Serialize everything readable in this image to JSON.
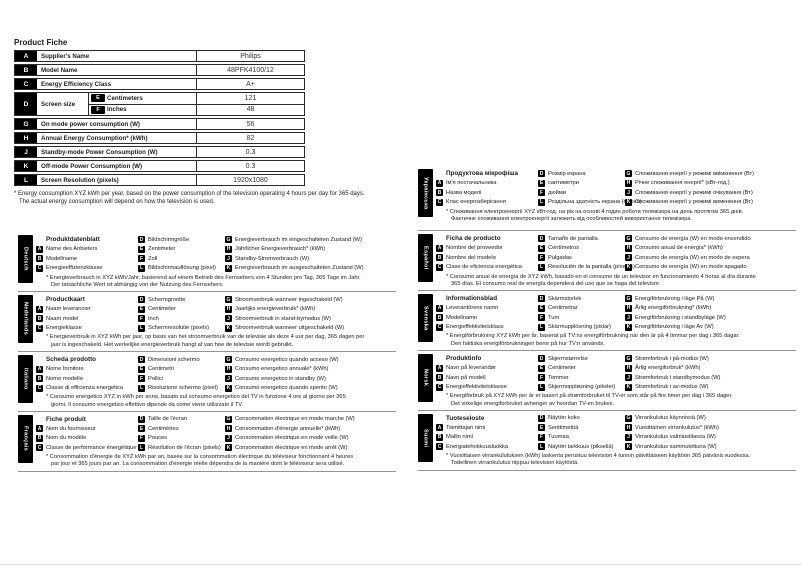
{
  "page": {
    "title": "Product Fiche",
    "footnote_line1": "* Energy consumption XYZ kWh per year, based on the power consumption of the television operating 4 hours per day for 365 days.",
    "footnote_line2": "The actual energy consumption will depend on how the television is used."
  },
  "fiche_table": {
    "rows": [
      {
        "key": "A",
        "label": "Supplier's Name",
        "value": "Philips"
      },
      {
        "key": "B",
        "label": "Model Name",
        "value": "48PFK4100/12"
      },
      {
        "key": "C",
        "label": "Energy Efficiency Class",
        "value": "A+"
      },
      {
        "key": "G",
        "label": "On mode power consumption (W)",
        "value": "56"
      },
      {
        "key": "H",
        "label": "Annual Energy Consumption* (kWh)",
        "value": "82"
      },
      {
        "key": "J",
        "label": "Standby-mode Power Consumption (W)",
        "value": "0.3"
      },
      {
        "key": "K",
        "label": "Off-mode Power Consumption (W)",
        "value": "0.3"
      },
      {
        "key": "L",
        "label": "Screen Resolution (pixels)",
        "value": "1920x1080"
      }
    ],
    "screen_size": {
      "key": "D",
      "label": "Screen size",
      "subrows": [
        {
          "key": "E",
          "label": "Centimeters",
          "value": "121"
        },
        {
          "key": "F",
          "label": "Inches",
          "value": "48"
        }
      ]
    }
  },
  "sections_left": [
    {
      "language": "Deutsch",
      "title": "Produktdatenblatt",
      "items_abc": [
        {
          "key": "A",
          "label": "Name des Anbieters"
        },
        {
          "key": "B",
          "label": "Modellname"
        },
        {
          "key": "C",
          "label": "Energieeffizienzklasse"
        }
      ],
      "items_defl": [
        {
          "key": "D",
          "label": "Bildschirmgröße"
        },
        {
          "key": "E",
          "label": "Zentimeter"
        },
        {
          "key": "F",
          "label": "Zoll"
        },
        {
          "key": "L",
          "label": "Bildschirmauflösung (pixel)"
        }
      ],
      "items_ghjk": [
        {
          "key": "G",
          "label": "Energieverbrauch im eingeschalteten Zustand (W)"
        },
        {
          "key": "H",
          "label": "Jährlicher Energieverbrauch* (kWh)"
        },
        {
          "key": "J",
          "label": "Standby-Stromverbrauch (W)"
        },
        {
          "key": "K",
          "label": "Energieverbrauch im ausgeschalteten Zustand (W)"
        }
      ],
      "footnote": [
        "* Energieverbrauch in XYZ kWh/Jahr, basierend auf einem Betrieb des Fernsehers von 4 Stunden pro Tag, 365 Tage im Jahr.",
        "Der tatsächliche Wert ist abhängig von der Nutzung des Fernsehers."
      ]
    },
    {
      "language": "Nederlands",
      "title": "Productkaart",
      "items_abc": [
        {
          "key": "A",
          "label": "Naam leverancier"
        },
        {
          "key": "B",
          "label": "Naam model"
        },
        {
          "key": "C",
          "label": "Energieklasse"
        }
      ],
      "items_defl": [
        {
          "key": "D",
          "label": "Schermgrootte"
        },
        {
          "key": "E",
          "label": "Centimeter"
        },
        {
          "key": "F",
          "label": "Inch"
        },
        {
          "key": "L",
          "label": "Schermresolutie (pixels)"
        }
      ],
      "items_ghjk": [
        {
          "key": "G",
          "label": "Stroomverbruik wanneer ingeschakeld (W)"
        },
        {
          "key": "H",
          "label": "Jaarlijks energieverbruik* (kWh)"
        },
        {
          "key": "J",
          "label": "Stroomverbruik in stand-bymodus (W)"
        },
        {
          "key": "K",
          "label": "Stroomverbruik wanneer uitgeschakeld (W)"
        }
      ],
      "footnote": [
        "* Energieverbruik in XYZ kWh per jaar, op basis van het stroomverbruik van de televisie als deze 4 uur per dag, 365 dagen per",
        "jaar is ingeschakeld. Het werkelijke energieverbruik hangt af van hoe de televisie wordt gebruikt."
      ]
    },
    {
      "language": "Italiano",
      "title": "Scheda prodotto",
      "items_abc": [
        {
          "key": "A",
          "label": "Nome fornitore"
        },
        {
          "key": "B",
          "label": "Nome modello"
        },
        {
          "key": "C",
          "label": "Classe di efficienza energetica"
        }
      ],
      "items_defl": [
        {
          "key": "D",
          "label": "Dimensioni schermo"
        },
        {
          "key": "E",
          "label": "Centimetri"
        },
        {
          "key": "F",
          "label": "Pollici"
        },
        {
          "key": "L",
          "label": "Risoluzione schermo (pixel)"
        }
      ],
      "items_ghjk": [
        {
          "key": "G",
          "label": "Consumo energetico quando acceso (W)"
        },
        {
          "key": "H",
          "label": "Consumo energetico annuale* (kWh)"
        },
        {
          "key": "J",
          "label": "Consumo energetico in standby (W)"
        },
        {
          "key": "K",
          "label": "Consumo energetico quando spento (W)"
        }
      ],
      "footnote": [
        "* Consumo energetico XYZ in kWh per anno, basato sul consumo energetico del TV in funzione 4 ore al giorno per 365",
        "giorni. Il consumo energetico effettivo dipende da come viene utilizzato il TV."
      ]
    },
    {
      "language": "Français",
      "title": "Fiche produit",
      "items_abc": [
        {
          "key": "A",
          "label": "Nom du fournisseur"
        },
        {
          "key": "B",
          "label": "Nom du modèle"
        },
        {
          "key": "C",
          "label": "Classe de performance énergétique"
        }
      ],
      "items_defl": [
        {
          "key": "D",
          "label": "Taille de l'écran"
        },
        {
          "key": "E",
          "label": "Centimètres"
        },
        {
          "key": "F",
          "label": "Pouces"
        },
        {
          "key": "L",
          "label": "Résolution de l'écran (pixels)"
        }
      ],
      "items_ghjk": [
        {
          "key": "G",
          "label": "Consommation électrique en mode marche (W)"
        },
        {
          "key": "H",
          "label": "Consommation d'énergie annuelle* (kWh)"
        },
        {
          "key": "J",
          "label": "Consommation électrique en mode veille (W)"
        },
        {
          "key": "K",
          "label": "Consommation électrique en mode arrêt (W)"
        }
      ],
      "footnote": [
        "* Consommation d'énergie de XYZ kWh par an, basée sur la consommation électrique du téléviseur fonctionnant 4 heures",
        "par jour et 365 jours par an. La consommation d'énergie réelle dépendra de la manière dont le téléviseur sera utilisé."
      ]
    }
  ],
  "sections_right": [
    {
      "language": "Українська",
      "title": "Продуктова мікрофіша",
      "items_abc": [
        {
          "key": "A",
          "label": "Ім'я постачальника"
        },
        {
          "key": "B",
          "label": "Назва моделі"
        },
        {
          "key": "C",
          "label": "Клас енергозберігання"
        }
      ],
      "items_defl": [
        {
          "key": "D",
          "label": "Розмір екрана"
        },
        {
          "key": "E",
          "label": "сантиметри"
        },
        {
          "key": "F",
          "label": "дюйми"
        },
        {
          "key": "L",
          "label": "Роздільна здатність екрана (піксел)"
        }
      ],
      "items_ghjk": [
        {
          "key": "G",
          "label": "Споживання енергії у режимі ввімкнення (Вт)"
        },
        {
          "key": "H",
          "label": "Річне споживання енергії* (кВт-год.)"
        },
        {
          "key": "J",
          "label": "Споживання енергії у режимі очікування (Вт)"
        },
        {
          "key": "K",
          "label": "Споживання енергії у режимі вимкнення (Вт)"
        }
      ],
      "footnote": [
        "* Споживання електроенергії XYZ кВт-год. на рік на основі 4 годин роботи телевізора на день протягом 365 днів.",
        "Фактичне споживання електроенергії залежить від особливостей використання телевізора."
      ]
    },
    {
      "language": "Español",
      "title": "Ficha de producto",
      "items_abc": [
        {
          "key": "A",
          "label": "Nombre del proveedor"
        },
        {
          "key": "B",
          "label": "Nombre del modelo"
        },
        {
          "key": "C",
          "label": "Clase de eficiencia energética"
        }
      ],
      "items_defl": [
        {
          "key": "D",
          "label": "Tamaño de pantalla"
        },
        {
          "key": "E",
          "label": "Centímetros"
        },
        {
          "key": "F",
          "label": "Pulgadas"
        },
        {
          "key": "L",
          "label": "Resolución de la pantalla (píxeles)"
        }
      ],
      "items_ghjk": [
        {
          "key": "G",
          "label": "Consumo de energía (W) en modo encendido"
        },
        {
          "key": "H",
          "label": "Consumo anual de energía* (kWh)"
        },
        {
          "key": "J",
          "label": "Consumo de energía (W) en modo de espera"
        },
        {
          "key": "K",
          "label": "Consumo de energía (W) en modo apagado"
        }
      ],
      "footnote": [
        "* Consumo anual de energía de XYZ kWh, basado en el consumo de un televisor en funcionamiento 4 horas al día durante",
        "365 días. El consumo real de energía dependerá del uso que se haga del televisor."
      ]
    },
    {
      "language": "Svenska",
      "title": "Informationsblad",
      "items_abc": [
        {
          "key": "A",
          "label": "Leverantörens namn"
        },
        {
          "key": "B",
          "label": "Modellnamn"
        },
        {
          "key": "C",
          "label": "Energieffektivitetsklass"
        }
      ],
      "items_defl": [
        {
          "key": "D",
          "label": "Skärmstorlek"
        },
        {
          "key": "E",
          "label": "Centimetrar"
        },
        {
          "key": "F",
          "label": "Tum"
        },
        {
          "key": "L",
          "label": "Skärmupplösning (pixlar)"
        }
      ],
      "items_ghjk": [
        {
          "key": "G",
          "label": "Energiförbrukning i läge På (W)"
        },
        {
          "key": "H",
          "label": "Årlig energiförbrukning* (kWh)"
        },
        {
          "key": "J",
          "label": "Energiförbrukning i standbyläge (W)"
        },
        {
          "key": "K",
          "label": "Energiförbrukning i läge Av (W)"
        }
      ],
      "footnote": [
        "* Energiförbrukning XYZ kWh per år, baserat på TV:ns energiförbrukning när den är på 4 timmar per dag i 365 dagar.",
        "Den faktiska energiförbrukningen beror på hur TV:n används."
      ]
    },
    {
      "language": "Norsk",
      "title": "Produktinfo",
      "items_abc": [
        {
          "key": "A",
          "label": "Navn på leverandør"
        },
        {
          "key": "B",
          "label": "Navn på modell"
        },
        {
          "key": "C",
          "label": "Energieffektivitetsklasse"
        }
      ],
      "items_defl": [
        {
          "key": "D",
          "label": "Skjermstørrelse"
        },
        {
          "key": "E",
          "label": "Centimeter"
        },
        {
          "key": "F",
          "label": "Tommer"
        },
        {
          "key": "L",
          "label": "Skjermoppløsning (piksler)"
        }
      ],
      "items_ghjk": [
        {
          "key": "G",
          "label": "Strømforbruk i på-modus (W)"
        },
        {
          "key": "H",
          "label": "Årlig energiforbruk* (kWh)"
        },
        {
          "key": "J",
          "label": "Strømforbruk i standbymodus (W)"
        },
        {
          "key": "K",
          "label": "Strømforbruk i av-modus (W)"
        }
      ],
      "footnote": [
        "* Energiforbruk på XYZ kWh per år er basert på strømforbruket til TV-er som står på fire timer per dag i 365 dager.",
        "Det virkelige energiforbruket avhenger av hvordan TV-en brukes."
      ]
    },
    {
      "language": "Suomi",
      "title": "Tuoteseloste",
      "items_abc": [
        {
          "key": "A",
          "label": "Toimittajan nimi"
        },
        {
          "key": "B",
          "label": "Mallin nimi"
        },
        {
          "key": "C",
          "label": "Energiatehokkuusluokka"
        }
      ],
      "items_defl": [
        {
          "key": "D",
          "label": "Näytön koko"
        },
        {
          "key": "E",
          "label": "Senttimetriä"
        },
        {
          "key": "F",
          "label": "Tuumaa"
        },
        {
          "key": "L",
          "label": "Näytön tarkkuus (pikseliä)"
        }
      ],
      "items_ghjk": [
        {
          "key": "G",
          "label": "Virrankulutus käynnissä (W)"
        },
        {
          "key": "H",
          "label": "Vuosittainen virrankulutus* (kWh)"
        },
        {
          "key": "J",
          "label": "Virrankulutus valmiustilassa (W)"
        },
        {
          "key": "K",
          "label": "Virrankulutus sammutettuna (W)"
        }
      ],
      "footnote": [
        "* Vuosittaisen virrankulutuksen (kWh) laskenta perustuu television 4 tunnin päivittäiseen käyttöön 365 päivänä vuodessa.",
        "Todellinen virrankulutus riippuu television käytöstä."
      ]
    }
  ]
}
